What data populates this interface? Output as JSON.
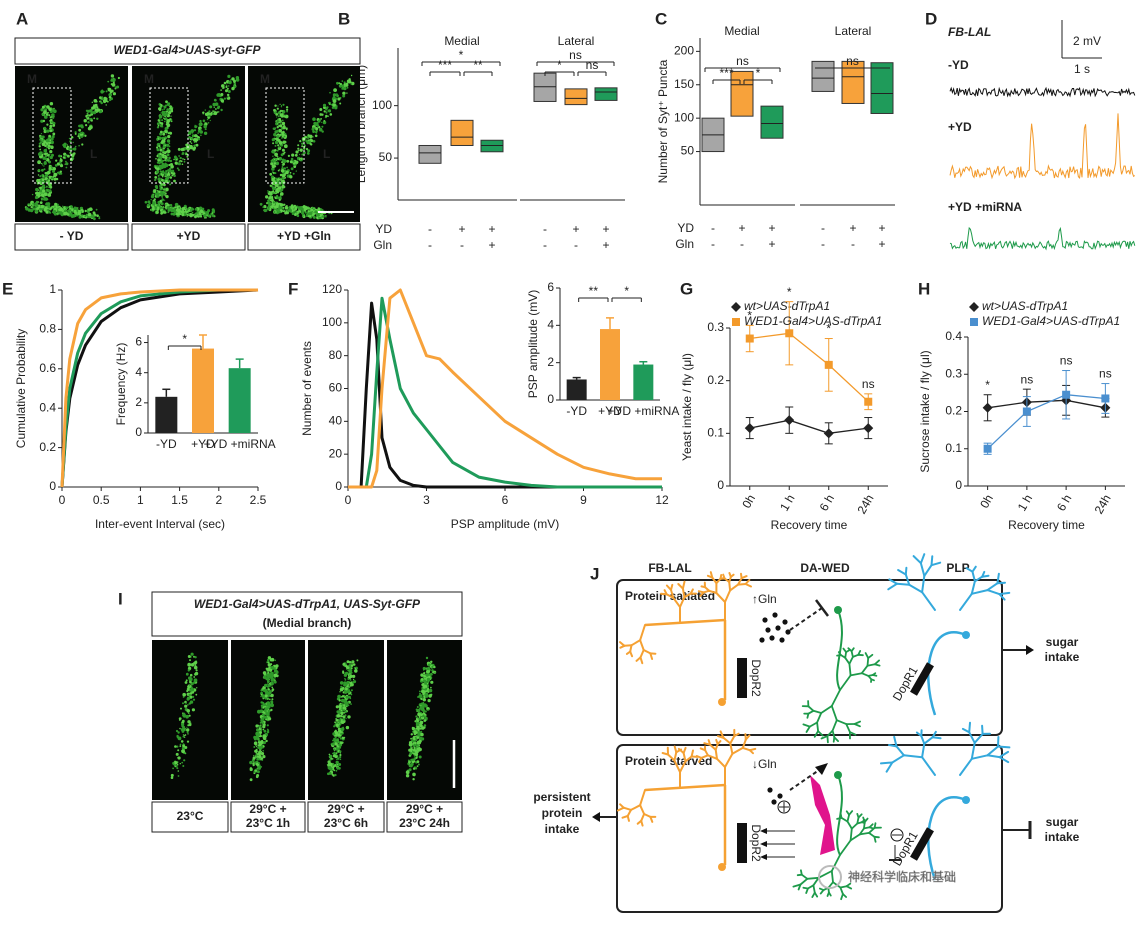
{
  "panels": {
    "A": {
      "label": "A",
      "title": "WED1-Gal4>UAS-syt-GFP",
      "regions": [
        "M",
        "L"
      ],
      "captions": [
        "- YD",
        "+YD",
        "+YD +Gln"
      ]
    },
    "D": {
      "label": "D",
      "title": "FB-LAL",
      "scale": [
        "2 mV",
        "1 s"
      ],
      "traces": [
        {
          "name": "-YD",
          "color": "#111111"
        },
        {
          "name": "+YD",
          "color": "#f39a2b"
        },
        {
          "name": "+YD +miRNA",
          "color": "#1e9a4a"
        }
      ]
    },
    "I": {
      "label": "I",
      "title": "WED1-Gal4>UAS-dTrpA1, UAS-Syt-GFP",
      "subtitle": "(Medial branch)",
      "captions": [
        [
          "23°C"
        ],
        [
          "29°C +",
          "23°C 1h"
        ],
        [
          "29°C +",
          "23°C 6h"
        ],
        [
          "29°C +",
          "23°C 24h"
        ]
      ]
    },
    "J": {
      "label": "J",
      "neurons": [
        {
          "name": "FB-LAL",
          "color": "#f5a133"
        },
        {
          "name": "DA-WED",
          "color": "#1e9a4a"
        },
        {
          "name": "PLP",
          "color": "#34a9dc"
        }
      ],
      "states": [
        {
          "title": "Protein satiated",
          "gln": "↑Gln",
          "receptors": [
            "DopR2",
            "DopR1"
          ],
          "outcome": [
            "sugar",
            "intake"
          ]
        },
        {
          "title": "Protein starved",
          "gln": "↓Gln",
          "receptors": [
            "DopR2",
            "DopR1"
          ],
          "outcome": [
            "sugar",
            "intake"
          ],
          "input": [
            "persistent",
            "protein",
            "intake"
          ]
        }
      ],
      "watermark": "神经科学临床和基础"
    }
  },
  "chart_data": [
    {
      "type": "box",
      "panel": "B",
      "groups": [
        "Medial",
        "Lateral"
      ],
      "ylabel": "Length of branch (μm)",
      "ylim": [
        10,
        155
      ],
      "yticks": [
        50,
        100
      ],
      "colors": [
        "#a6a6a6",
        "#f7a23b",
        "#1f9b5a"
      ],
      "boxes": [
        {
          "q1": 45,
          "median": 55,
          "q3": 62
        },
        {
          "q1": 62,
          "median": 70,
          "q3": 86
        },
        {
          "q1": 56,
          "median": 62,
          "q3": 67
        },
        {
          "q1": 104,
          "median": 118,
          "q3": 131
        },
        {
          "q1": 101,
          "median": 107,
          "q3": 116
        },
        {
          "q1": 105,
          "median": 113,
          "q3": 117
        }
      ],
      "significance": [
        [
          "*",
          "***",
          "**"
        ],
        [
          "ns",
          "*",
          "ns"
        ]
      ],
      "rows": [
        {
          "name": "YD",
          "signs": [
            "-",
            "+",
            "+",
            "-",
            "+",
            "+"
          ]
        },
        {
          "name": "Gln",
          "signs": [
            "-",
            "-",
            "+",
            "-",
            "-",
            "+"
          ]
        }
      ]
    },
    {
      "type": "box",
      "panel": "C",
      "groups": [
        "Medial",
        "Lateral"
      ],
      "ylabel": "Number of Syt⁺ Puncta",
      "ylim": [
        -30,
        220
      ],
      "yticks": [
        50,
        100,
        150,
        200
      ],
      "colors": [
        "#a6a6a6",
        "#f7a23b",
        "#1f9b5a"
      ],
      "boxes": [
        {
          "q1": 50,
          "median": 75,
          "q3": 100
        },
        {
          "q1": 103,
          "median": 150,
          "q3": 170
        },
        {
          "q1": 70,
          "median": 92,
          "q3": 118
        },
        {
          "q1": 140,
          "median": 160,
          "q3": 185
        },
        {
          "q1": 122,
          "median": 162,
          "q3": 185
        },
        {
          "q1": 107,
          "median": 137,
          "q3": 183
        }
      ],
      "significance": [
        [
          "ns",
          "***",
          "*"
        ],
        [
          "ns"
        ]
      ],
      "rows": [
        {
          "name": "YD",
          "signs": [
            "-",
            "+",
            "+",
            "-",
            "+",
            "+"
          ]
        },
        {
          "name": "Gln",
          "signs": [
            "-",
            "-",
            "+",
            "-",
            "-",
            "+"
          ]
        }
      ]
    },
    {
      "type": "line",
      "panel": "E",
      "xlabel": "Inter-event Interval (sec)",
      "ylabel": "Cumulative Probability",
      "x": [
        0,
        0.05,
        0.1,
        0.2,
        0.3,
        0.5,
        0.75,
        1,
        1.5,
        2,
        2.5
      ],
      "xlim": [
        0,
        2.5
      ],
      "xticks": [
        0,
        0.5,
        1,
        1.5,
        2,
        2.5
      ],
      "ylim": [
        0,
        1
      ],
      "yticks": [
        0,
        0.2,
        0.4,
        0.6,
        0.8,
        1
      ],
      "series": [
        {
          "color": "#111111",
          "values": [
            0,
            0.28,
            0.45,
            0.62,
            0.72,
            0.84,
            0.91,
            0.95,
            0.98,
            0.99,
            1
          ]
        },
        {
          "color": "#1f9b5a",
          "values": [
            0,
            0.3,
            0.5,
            0.68,
            0.78,
            0.88,
            0.94,
            0.97,
            0.99,
            1,
            1
          ]
        },
        {
          "color": "#f7a23b",
          "values": [
            0,
            0.45,
            0.65,
            0.83,
            0.9,
            0.96,
            0.98,
            0.99,
            1,
            1,
            1
          ]
        }
      ]
    },
    {
      "type": "bar",
      "ylabel": "Frequency (Hz)",
      "categories": [
        "-YD",
        "+YD",
        "+YD +miRNA"
      ],
      "values": [
        2.4,
        5.6,
        4.3
      ],
      "errors": [
        0.5,
        0.9,
        0.6
      ],
      "colors": [
        "#222222",
        "#f7a23b",
        "#1f9b5a"
      ],
      "ylim": [
        0,
        6.5
      ],
      "yticks": [
        0,
        2,
        4,
        6
      ],
      "significance": [
        "*"
      ]
    },
    {
      "type": "line",
      "panel": "F",
      "xlabel": "PSP amplitude (mV)",
      "ylabel": "Number of events",
      "x": [
        0,
        0.5,
        0.7,
        0.9,
        1.1,
        1.3,
        1.6,
        2,
        2.5,
        3,
        3.5,
        4,
        5,
        6,
        7,
        8,
        9,
        10,
        11,
        12
      ],
      "xlim": [
        0,
        12
      ],
      "xticks": [
        0,
        3,
        6,
        9,
        12
      ],
      "ylim": [
        0,
        120
      ],
      "yticks": [
        0,
        20,
        40,
        60,
        80,
        100,
        120
      ],
      "series": [
        {
          "color": "#111111",
          "values": [
            0,
            0,
            60,
            112,
            90,
            30,
            12,
            4,
            1,
            0,
            0,
            0,
            0,
            0,
            0,
            0,
            0,
            0,
            0,
            0
          ]
        },
        {
          "color": "#1f9b5a",
          "values": [
            0,
            0,
            0,
            20,
            70,
            115,
            90,
            60,
            45,
            35,
            25,
            15,
            6,
            3,
            1,
            0,
            0,
            0,
            0,
            0
          ]
        },
        {
          "color": "#f7a23b",
          "values": [
            0,
            0,
            0,
            0,
            10,
            60,
            115,
            120,
            100,
            80,
            78,
            70,
            55,
            40,
            30,
            20,
            12,
            8,
            5,
            5
          ]
        }
      ]
    },
    {
      "type": "bar",
      "ylabel": "PSP amplitude (mV)",
      "categories": [
        "-YD",
        "+YD",
        "+YD +miRNA"
      ],
      "values": [
        1.1,
        3.8,
        1.9
      ],
      "errors": [
        0.1,
        0.6,
        0.15
      ],
      "colors": [
        "#222222",
        "#f7a23b",
        "#1f9b5a"
      ],
      "ylim": [
        0,
        6
      ],
      "yticks": [
        0,
        2,
        4,
        6
      ],
      "significance": [
        "**",
        "*"
      ]
    },
    {
      "type": "errorline",
      "panel": "G",
      "xlabel": "Recovery time",
      "ylabel": "Yeast intake / fly (μl)",
      "categories": [
        "0h",
        "1 h",
        "6 h",
        "24h"
      ],
      "ylim": [
        0,
        0.3
      ],
      "yticks": [
        0,
        0.1,
        0.2,
        0.3
      ],
      "series": [
        {
          "name": "wt>UAS-dTrpA1",
          "color": "#222222",
          "marker": "diamond",
          "values": [
            0.11,
            0.125,
            0.1,
            0.11
          ],
          "errors": [
            0.02,
            0.025,
            0.02,
            0.02
          ]
        },
        {
          "name": "WED1-Gal4>UAS-dTrpA1",
          "color": "#f39a2b",
          "marker": "square",
          "values": [
            0.28,
            0.29,
            0.23,
            0.16
          ],
          "errors": [
            0.025,
            0.06,
            0.05,
            0.015
          ]
        }
      ],
      "annotations": [
        "*",
        "*",
        "*",
        "ns"
      ]
    },
    {
      "type": "errorline",
      "panel": "H",
      "xlabel": "Recovery time",
      "ylabel": "Sucrose intake / fly (μl)",
      "categories": [
        "0h",
        "1 h",
        "6 h",
        "24h"
      ],
      "ylim": [
        0,
        0.4
      ],
      "yticks": [
        0,
        0.1,
        0.2,
        0.3,
        0.4
      ],
      "series": [
        {
          "name": "wt>UAS-dTrpA1",
          "color": "#222222",
          "marker": "diamond",
          "values": [
            0.21,
            0.225,
            0.23,
            0.21
          ],
          "errors": [
            0.035,
            0.035,
            0.04,
            0.025
          ]
        },
        {
          "name": "WED1-Gal4>UAS-dTrpA1",
          "color": "#4a8fcf",
          "marker": "square",
          "values": [
            0.1,
            0.2,
            0.245,
            0.235
          ],
          "errors": [
            0.015,
            0.04,
            0.065,
            0.04
          ]
        }
      ],
      "annotations": [
        "*",
        "ns",
        "ns",
        "ns"
      ]
    }
  ]
}
